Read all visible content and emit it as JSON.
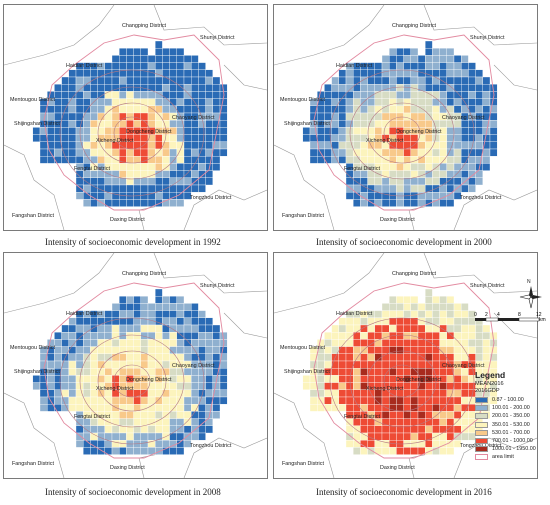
{
  "panels": [
    {
      "caption": "Intensity of socioeconomic development in 1992",
      "year": 1992
    },
    {
      "caption": "Intensity of socioeconomic development in 2000",
      "year": 2000
    },
    {
      "caption": "Intensity of socioeconomic development in 2008",
      "year": 2008
    },
    {
      "caption": "Intensity of socioeconomic development in 2016",
      "year": 2016
    }
  ],
  "district_labels": {
    "changping": "Changping District",
    "shunyi": "Shunyi District",
    "haidian": "Haidian District",
    "mentougou": "Mentougou District",
    "shijingshan": "Shijingshan District",
    "xicheng": "Xicheng District",
    "dongcheng": "Dongcheng District",
    "chaoyang": "Chaoyang District",
    "fengtai": "Fengtai District",
    "fangshan": "Fangshan District",
    "daxing": "Daxing District",
    "tongzhou": "Tongzhou District"
  },
  "north_arrow": {
    "label": "N",
    "icon": "compass-rose-icon"
  },
  "scale_bar": {
    "ticks": [
      "0",
      "2",
      "4",
      "8",
      "12"
    ],
    "unit": "km"
  },
  "legend": {
    "title": "Legend",
    "field": "MEAN2016",
    "subfield": "2016GDP",
    "classes": [
      {
        "label": "0.87 - 100.00",
        "color": "#2a6bb5"
      },
      {
        "label": "100.01 - 200.00",
        "color": "#8fb0cf"
      },
      {
        "label": "200.01 - 350.00",
        "color": "#d7dcc4"
      },
      {
        "label": "350.01 - 530.00",
        "color": "#fcf4bd"
      },
      {
        "label": "530.01 - 700.00",
        "color": "#f8c98a"
      },
      {
        "label": "700.01 - 1000.00",
        "color": "#ee4b35"
      },
      {
        "label": "1000.01 - 1950.00",
        "color": "#a82b1e"
      }
    ],
    "outline_label": "area limit",
    "outline_color": "#e28aa0"
  }
}
